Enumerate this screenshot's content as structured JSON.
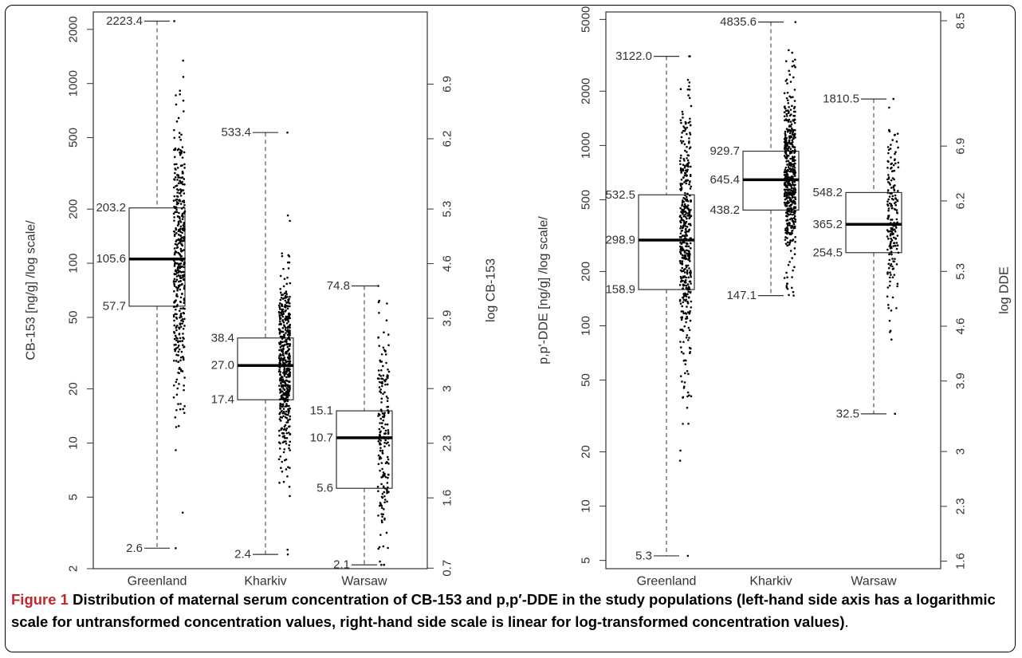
{
  "caption": {
    "label": "Figure 1",
    "text": "Distribution of maternal serum concentration of CB-153 and p,p′-DDE in the study populations (left-hand side axis has a logarithmic scale for untransformed concentration values, right-hand side scale is linear for log-transformed concentration values)",
    "end": "."
  },
  "chart_data": [
    {
      "type": "box",
      "categories": [
        "Greenland",
        "Kharkiv",
        "Warsaw"
      ],
      "ylabel": "CB-153 [ng/g] /log scale/",
      "ylabel_right": "log CB-153",
      "y_scale": "log",
      "ylim": [
        2,
        2500
      ],
      "yticks": [
        2,
        5,
        10,
        20,
        50,
        100,
        200,
        500,
        1000,
        2000
      ],
      "ytick_labels": [
        "2",
        "5",
        "10",
        "20",
        "50",
        "100",
        "200",
        "500",
        "1000",
        "2000"
      ],
      "right_ticks": [
        0.7,
        1.6,
        2.3,
        3,
        3.9,
        4.6,
        5.3,
        6.2,
        6.9
      ],
      "right_tick_labels": [
        "0.7",
        "1.6",
        "2.3",
        "3",
        "3.9",
        "4.6",
        "5.3",
        "6.2",
        "6.9"
      ],
      "boxes": [
        {
          "name": "Greenland",
          "min": 2.6,
          "q1": 57.7,
          "median": 105.6,
          "q3": 203.2,
          "max": 2223.4,
          "labels": {
            "min": "2.6",
            "q1": "57.7",
            "median": "105.6",
            "q3": "203.2",
            "max": "2223.4"
          }
        },
        {
          "name": "Kharkiv",
          "min": 2.4,
          "q1": 17.4,
          "median": 27.0,
          "q3": 38.4,
          "max": 533.4,
          "labels": {
            "min": "2.4",
            "q1": "17.4",
            "median": "27.0",
            "q3": "38.4",
            "max": "533.4"
          }
        },
        {
          "name": "Warsaw",
          "min": 2.1,
          "q1": 5.6,
          "median": 10.7,
          "q3": 15.1,
          "max": 74.8,
          "labels": {
            "min": "2.1",
            "q1": "5.6",
            "median": "10.7",
            "q3": "15.1",
            "max": "74.8"
          }
        }
      ],
      "jitter_points": [
        {
          "group": "Greenland",
          "n": 420
        },
        {
          "group": "Kharkiv",
          "n": 500
        },
        {
          "group": "Warsaw",
          "n": 190
        }
      ]
    },
    {
      "type": "box",
      "categories": [
        "Greenland",
        "Kharkiv",
        "Warsaw"
      ],
      "ylabel": "p,p'-DDE [ng/g] /log scale/",
      "ylabel_right": "log DDE",
      "y_scale": "log",
      "ylim": [
        4.5,
        5500
      ],
      "yticks": [
        5,
        10,
        20,
        50,
        100,
        200,
        500,
        1000,
        2000,
        5000
      ],
      "ytick_labels": [
        "5",
        "10",
        "20",
        "50",
        "100",
        "200",
        "500",
        "1000",
        "2000",
        "5000"
      ],
      "right_ticks": [
        1.6,
        2.3,
        3,
        3.9,
        4.6,
        5.3,
        6.2,
        6.9,
        8.5
      ],
      "right_tick_labels": [
        "1.6",
        "2.3",
        "3",
        "3.9",
        "4.6",
        "5.3",
        "6.2",
        "6.9",
        "8.5"
      ],
      "boxes": [
        {
          "name": "Greenland",
          "min": 5.3,
          "q1": 158.9,
          "median": 298.9,
          "q3": 532.5,
          "max": 3122.0,
          "labels": {
            "min": "5.3",
            "q1": "158.9",
            "median": "298.9",
            "q3": "532.5",
            "max": "3122.0"
          }
        },
        {
          "name": "Kharkiv",
          "min": 147.1,
          "q1": 438.2,
          "median": 645.4,
          "q3": 929.7,
          "max": 4835.6,
          "labels": {
            "min": "147.1",
            "q1": "438.2",
            "median": "645.4",
            "q3": "929.7",
            "max": "4835.6"
          }
        },
        {
          "name": "Warsaw",
          "min": 32.5,
          "q1": 254.5,
          "median": 365.2,
          "q3": 548.2,
          "max": 1810.5,
          "labels": {
            "min": "32.5",
            "q1": "254.5",
            "median": "365.2",
            "q3": "548.2",
            "max": "1810.5"
          }
        }
      ],
      "jitter_points": [
        {
          "group": "Greenland",
          "n": 430
        },
        {
          "group": "Kharkiv",
          "n": 500
        },
        {
          "group": "Warsaw",
          "n": 190
        }
      ]
    }
  ]
}
